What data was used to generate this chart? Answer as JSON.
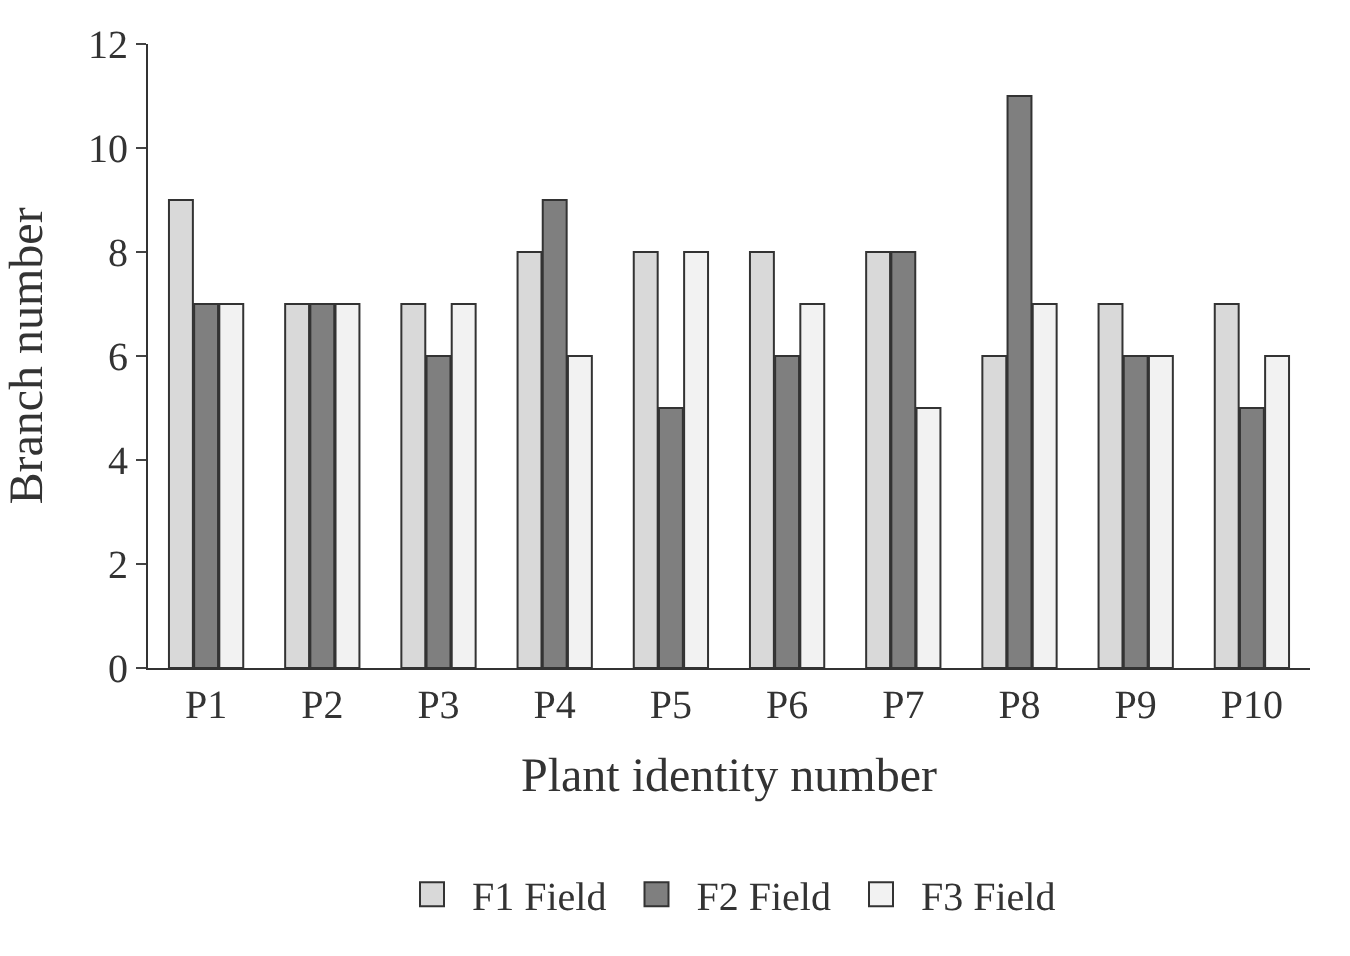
{
  "chart_data": {
    "type": "bar",
    "xlabel": "Plant identity number",
    "ylabel": "Branch number",
    "categories": [
      "P1",
      "P2",
      "P3",
      "P4",
      "P5",
      "P6",
      "P7",
      "P8",
      "P9",
      "P10"
    ],
    "series": [
      {
        "name": "F1 Field",
        "color": "#d9d9d9",
        "values": [
          9,
          7,
          7,
          8,
          8,
          8,
          8,
          6,
          7,
          7
        ]
      },
      {
        "name": "F2 Field",
        "color": "#7f7f7f",
        "values": [
          7,
          7,
          6,
          9,
          5,
          6,
          8,
          11,
          6,
          5
        ]
      },
      {
        "name": "F3 Field",
        "color": "#f2f2f2",
        "values": [
          7,
          7,
          7,
          6,
          8,
          7,
          5,
          7,
          6,
          6
        ]
      }
    ],
    "ylim": [
      0,
      12
    ],
    "yticks": [
      0,
      2,
      4,
      6,
      8,
      10,
      12
    ],
    "legend": "bottom"
  }
}
